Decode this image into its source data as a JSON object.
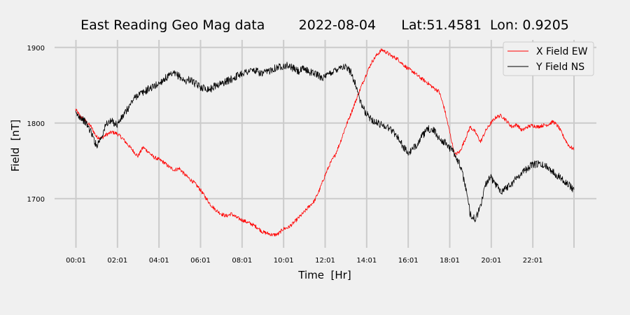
{
  "chart_data": {
    "type": "line",
    "title": "East Reading Geo Mag data        2022-08-04      Lat:51.4581  Lon: 0.9205",
    "xlabel": "Time  [Hr]",
    "ylabel": "Field  [nT]",
    "xlim": [
      0,
      24
    ],
    "ylim": [
      1635,
      1910
    ],
    "x_ticks": [
      {
        "value": 0.0167,
        "label": "00:01"
      },
      {
        "value": 2.0167,
        "label": "02:01"
      },
      {
        "value": 4.0167,
        "label": "04:01"
      },
      {
        "value": 6.0167,
        "label": "06:01"
      },
      {
        "value": 8.0167,
        "label": "08:01"
      },
      {
        "value": 10.0167,
        "label": "10:01"
      },
      {
        "value": 12.0167,
        "label": "12:01"
      },
      {
        "value": 14.0167,
        "label": "14:01"
      },
      {
        "value": 16.0167,
        "label": "16:01"
      },
      {
        "value": 18.0167,
        "label": "18:01"
      },
      {
        "value": 20.0167,
        "label": "20:01"
      },
      {
        "value": 22.0167,
        "label": "22:01"
      },
      {
        "value": 24.0,
        "label": ""
      }
    ],
    "y_ticks": [
      {
        "value": 1700,
        "label": "1700"
      },
      {
        "value": 1800,
        "label": "1800"
      },
      {
        "value": 1900,
        "label": "1900"
      }
    ],
    "grid": true,
    "legend_position": "top-right",
    "series": [
      {
        "name": "X Field EW",
        "color": "#ff0000",
        "x": [
          0,
          0.25,
          0.5,
          0.75,
          1.0,
          1.25,
          1.5,
          1.75,
          2.0,
          2.25,
          2.5,
          2.75,
          3.0,
          3.25,
          3.5,
          3.75,
          4.0,
          4.25,
          4.5,
          4.75,
          5.0,
          5.25,
          5.5,
          5.75,
          6.0,
          6.25,
          6.5,
          6.75,
          7.0,
          7.25,
          7.5,
          7.75,
          8.0,
          8.25,
          8.5,
          8.75,
          9.0,
          9.25,
          9.5,
          9.75,
          10.0,
          10.25,
          10.5,
          10.75,
          11.0,
          11.25,
          11.5,
          11.75,
          12.0,
          12.25,
          12.5,
          12.75,
          13.0,
          13.25,
          13.5,
          13.75,
          14.0,
          14.25,
          14.5,
          14.75,
          15.0,
          15.25,
          15.5,
          15.75,
          16.0,
          16.25,
          16.5,
          16.75,
          17.0,
          17.25,
          17.5,
          17.75,
          18.0,
          18.25,
          18.5,
          18.75,
          19.0,
          19.25,
          19.5,
          19.75,
          20.0,
          20.25,
          20.5,
          20.75,
          21.0,
          21.25,
          21.5,
          21.75,
          22.0,
          22.25,
          22.5,
          22.75,
          23.0,
          23.25,
          23.5,
          23.75,
          24.0
        ],
        "y": [
          1818,
          1808,
          1802,
          1795,
          1782,
          1780,
          1785,
          1788,
          1786,
          1780,
          1772,
          1764,
          1756,
          1768,
          1762,
          1755,
          1752,
          1748,
          1742,
          1738,
          1740,
          1732,
          1726,
          1720,
          1712,
          1702,
          1692,
          1685,
          1680,
          1677,
          1680,
          1675,
          1672,
          1669,
          1666,
          1662,
          1656,
          1654,
          1652,
          1653,
          1660,
          1662,
          1668,
          1675,
          1682,
          1690,
          1697,
          1712,
          1730,
          1746,
          1758,
          1775,
          1795,
          1812,
          1830,
          1848,
          1865,
          1880,
          1890,
          1897,
          1893,
          1888,
          1885,
          1878,
          1872,
          1868,
          1862,
          1857,
          1852,
          1846,
          1842,
          1820,
          1790,
          1758,
          1762,
          1778,
          1795,
          1788,
          1775,
          1790,
          1800,
          1808,
          1810,
          1803,
          1795,
          1798,
          1790,
          1795,
          1797,
          1795,
          1797,
          1798,
          1802,
          1795,
          1782,
          1770,
          1765
        ]
      },
      {
        "name": "Y Field NS",
        "color": "#000000",
        "x": [
          0,
          0.25,
          0.5,
          0.75,
          1.0,
          1.25,
          1.5,
          1.75,
          2.0,
          2.25,
          2.5,
          2.75,
          3.0,
          3.25,
          3.5,
          3.75,
          4.0,
          4.25,
          4.5,
          4.75,
          5.0,
          5.25,
          5.5,
          5.75,
          6.0,
          6.25,
          6.5,
          6.75,
          7.0,
          7.25,
          7.5,
          7.75,
          8.0,
          8.25,
          8.5,
          8.75,
          9.0,
          9.25,
          9.5,
          9.75,
          10.0,
          10.25,
          10.5,
          10.75,
          11.0,
          11.25,
          11.5,
          11.75,
          12.0,
          12.25,
          12.5,
          12.75,
          13.0,
          13.25,
          13.5,
          13.75,
          14.0,
          14.25,
          14.5,
          14.75,
          15.0,
          15.25,
          15.5,
          15.75,
          16.0,
          16.25,
          16.5,
          16.75,
          17.0,
          17.25,
          17.5,
          17.75,
          18.0,
          18.25,
          18.5,
          18.75,
          19.0,
          19.25,
          19.5,
          19.75,
          20.0,
          20.25,
          20.5,
          20.75,
          21.0,
          21.25,
          21.5,
          21.75,
          22.0,
          22.25,
          22.5,
          22.75,
          23.0,
          23.25,
          23.5,
          23.75,
          24.0
        ],
        "y": [
          1812,
          1808,
          1800,
          1788,
          1770,
          1782,
          1800,
          1802,
          1798,
          1808,
          1818,
          1830,
          1838,
          1840,
          1845,
          1848,
          1852,
          1858,
          1862,
          1865,
          1862,
          1855,
          1858,
          1852,
          1848,
          1846,
          1845,
          1850,
          1852,
          1855,
          1858,
          1862,
          1866,
          1868,
          1870,
          1868,
          1865,
          1868,
          1872,
          1874,
          1876,
          1876,
          1872,
          1868,
          1872,
          1868,
          1866,
          1862,
          1860,
          1866,
          1870,
          1875,
          1874,
          1868,
          1850,
          1825,
          1812,
          1805,
          1800,
          1798,
          1795,
          1790,
          1782,
          1770,
          1760,
          1765,
          1775,
          1785,
          1792,
          1790,
          1780,
          1775,
          1768,
          1760,
          1745,
          1720,
          1680,
          1672,
          1690,
          1720,
          1728,
          1718,
          1710,
          1715,
          1720,
          1728,
          1735,
          1740,
          1745,
          1746,
          1744,
          1742,
          1735,
          1730,
          1725,
          1718,
          1712
        ]
      }
    ]
  }
}
